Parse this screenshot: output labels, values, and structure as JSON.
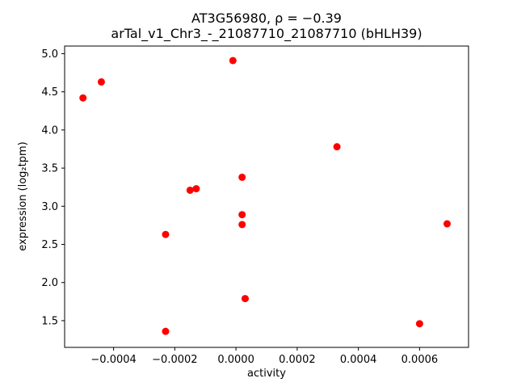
{
  "chart_data": {
    "type": "scatter",
    "title_lines": [
      "AT3G56980, ρ = −0.39",
      "arTal_v1_Chr3_-_21087710_21087710 (bHLH39)"
    ],
    "xlabel": "activity",
    "ylabel": "expression (log₂tpm)",
    "marker_color": "#ff0000",
    "grid": false,
    "legend": "none",
    "xlim": [
      -0.00056,
      0.00076
    ],
    "ylim": [
      1.15,
      5.1
    ],
    "x_ticks": [
      -0.0004,
      -0.0002,
      0.0,
      0.0002,
      0.0004,
      0.0006
    ],
    "x_tick_labels": [
      "−0.0004",
      "−0.0002",
      "0.0000",
      "0.0002",
      "0.0004",
      "0.0006"
    ],
    "y_ticks": [
      1.5,
      2.0,
      2.5,
      3.0,
      3.5,
      4.0,
      4.5,
      5.0
    ],
    "y_tick_labels": [
      "1.5",
      "2.0",
      "2.5",
      "3.0",
      "3.5",
      "4.0",
      "4.5",
      "5.0"
    ],
    "points": [
      {
        "x": -0.0005,
        "y": 4.42
      },
      {
        "x": -0.00044,
        "y": 4.63
      },
      {
        "x": -1e-05,
        "y": 4.91
      },
      {
        "x": 0.00033,
        "y": 3.78
      },
      {
        "x": 2e-05,
        "y": 3.38
      },
      {
        "x": -0.00015,
        "y": 3.21
      },
      {
        "x": -0.00013,
        "y": 3.23
      },
      {
        "x": 2e-05,
        "y": 2.89
      },
      {
        "x": 2e-05,
        "y": 2.76
      },
      {
        "x": 0.00069,
        "y": 2.77
      },
      {
        "x": -0.00023,
        "y": 2.63
      },
      {
        "x": 3e-05,
        "y": 1.79
      },
      {
        "x": 0.0006,
        "y": 1.46
      },
      {
        "x": -0.00023,
        "y": 1.36
      }
    ]
  }
}
